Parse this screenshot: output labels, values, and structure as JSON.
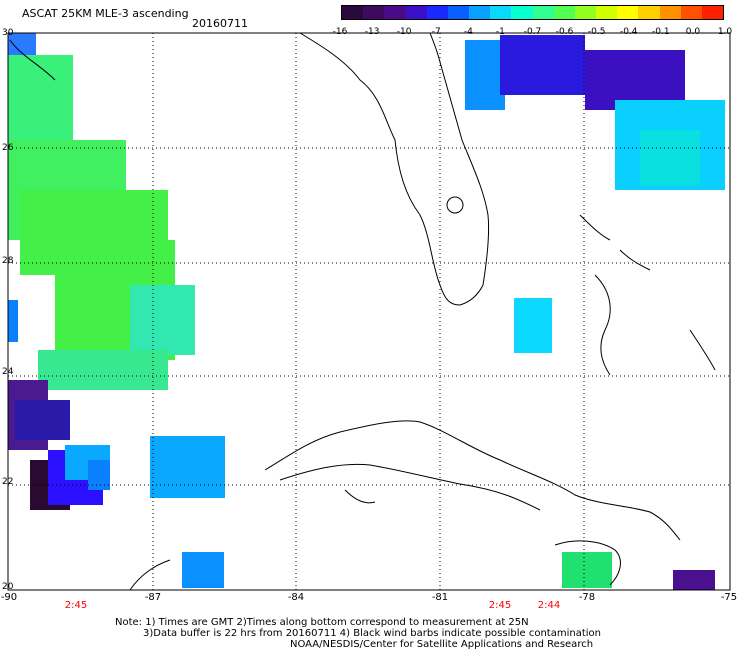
{
  "title": "ASCAT 25KM MLE-3 ascending",
  "date": "20160711",
  "colorbar": {
    "colors": [
      "#2a0a3a",
      "#3d0a5e",
      "#4a0a8a",
      "#3a10c8",
      "#1a2aff",
      "#0a60ff",
      "#0aa0ff",
      "#0ad8ff",
      "#0affd0",
      "#30ff90",
      "#50ff50",
      "#90ff20",
      "#d0ff00",
      "#ffff00",
      "#ffd000",
      "#ff9000",
      "#ff5000",
      "#ff2000"
    ],
    "labels": [
      "-16",
      "-13",
      "-10",
      "-7",
      "-4",
      "-1",
      "-0.7",
      "-0.6",
      "-0.5",
      "-0.4",
      "-0.1",
      "0.0",
      "1.0"
    ]
  },
  "axes": {
    "lon_labels": [
      "-90",
      "-87",
      "-84",
      "-81",
      "-78",
      "-75"
    ],
    "lat_labels": [
      "30",
      "26",
      "28",
      "24",
      "22",
      "20"
    ]
  },
  "times": [
    "2:45",
    "2:45",
    "2:44"
  ],
  "notes": [
    "Note: 1) Times are GMT 2)Times along bottom correspond to measurement at 25N",
    "3)Data buffer is 22 hrs from 20160711 4) Black wind barbs indicate possible contamination",
    "NOAA/NESDIS/Center for Satellite Applications and Research"
  ]
}
